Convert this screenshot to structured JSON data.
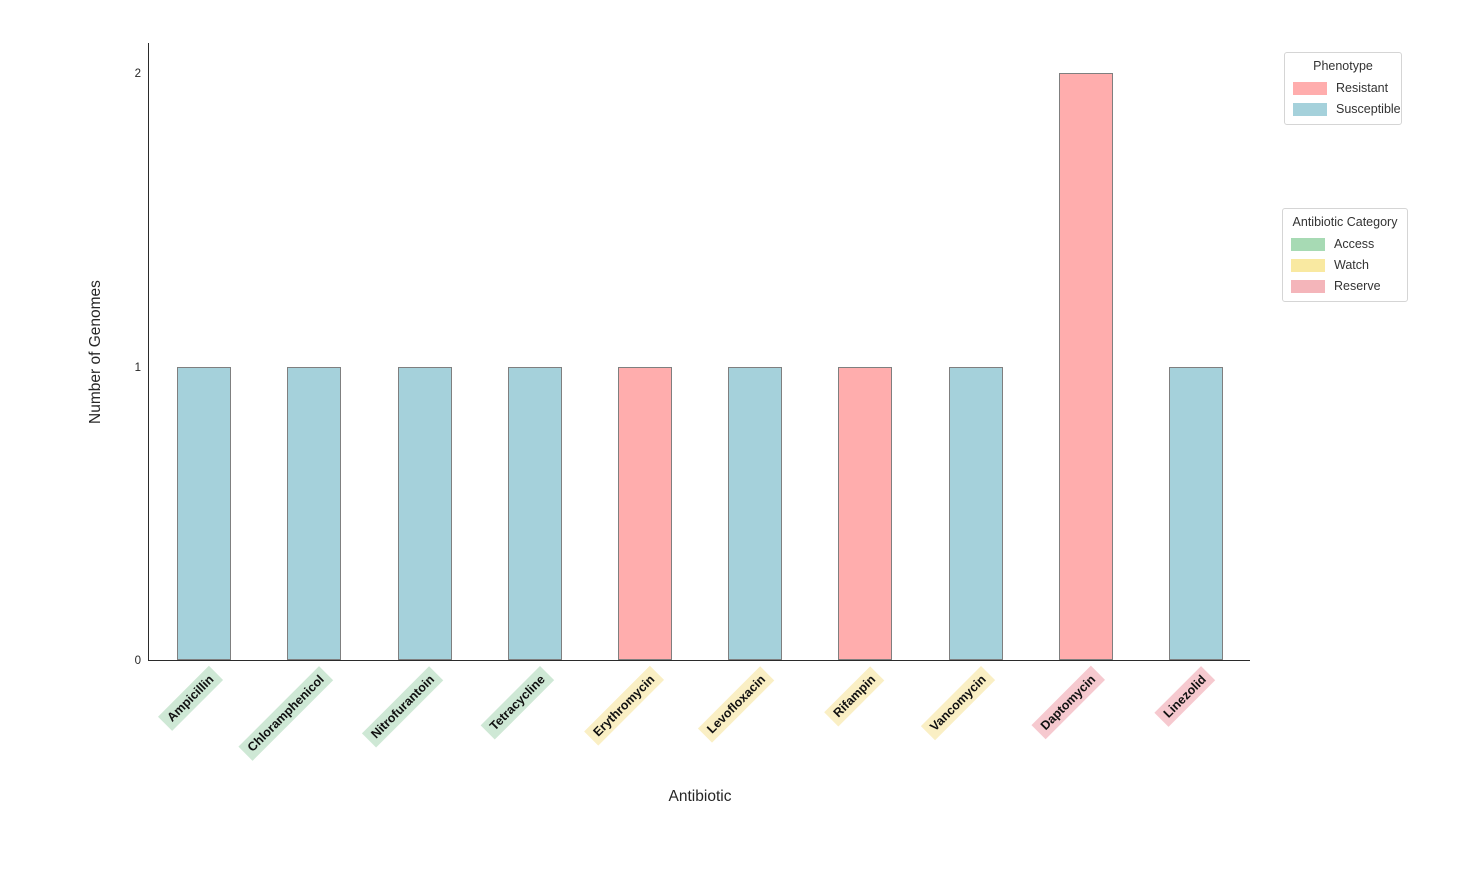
{
  "chart_data": {
    "type": "bar",
    "xlabel": "Antibiotic",
    "ylabel": "Number of Genomes",
    "categories": [
      "Ampicillin",
      "Chloramphenicol",
      "Nitrofurantoin",
      "Tetracycline",
      "Erythromycin",
      "Levofloxacin",
      "Rifampin",
      "Vancomycin",
      "Daptomycin",
      "Linezolid"
    ],
    "values": [
      1,
      1,
      1,
      1,
      1,
      1,
      1,
      1,
      2,
      1
    ],
    "phenotypes": [
      "Susceptible",
      "Susceptible",
      "Susceptible",
      "Susceptible",
      "Resistant",
      "Susceptible",
      "Resistant",
      "Susceptible",
      "Resistant",
      "Susceptible"
    ],
    "antibiotic_categories": [
      "Access",
      "Access",
      "Access",
      "Access",
      "Watch",
      "Watch",
      "Watch",
      "Watch",
      "Reserve",
      "Reserve"
    ],
    "yticks": [
      "0",
      "1",
      "2"
    ],
    "ylim": [
      0,
      2.1
    ],
    "grid": false,
    "legend_position": "outside-right",
    "colors": {
      "phenotype": {
        "Resistant": "#FFADAD",
        "Susceptible": "#A5D1DB"
      },
      "category_swatch": {
        "Access": "#A7DAB4",
        "Watch": "#F9E9A1",
        "Reserve": "#F4B5BA"
      },
      "category_label_bg": {
        "Access": "#CEE8D5",
        "Watch": "#FAEFC4",
        "Reserve": "#F6C9CF"
      },
      "bar_edge": "#7f7f7f"
    },
    "legends": {
      "phenotype": {
        "title": "Phenotype",
        "items": [
          {
            "label": "Resistant",
            "color": "#FFADAD"
          },
          {
            "label": "Susceptible",
            "color": "#A5D1DB"
          }
        ]
      },
      "category": {
        "title": "Antibiotic Category",
        "items": [
          {
            "label": "Access",
            "color": "#A7DAB4"
          },
          {
            "label": "Watch",
            "color": "#F9E9A1"
          },
          {
            "label": "Reserve",
            "color": "#F4B5BA"
          }
        ]
      }
    }
  }
}
